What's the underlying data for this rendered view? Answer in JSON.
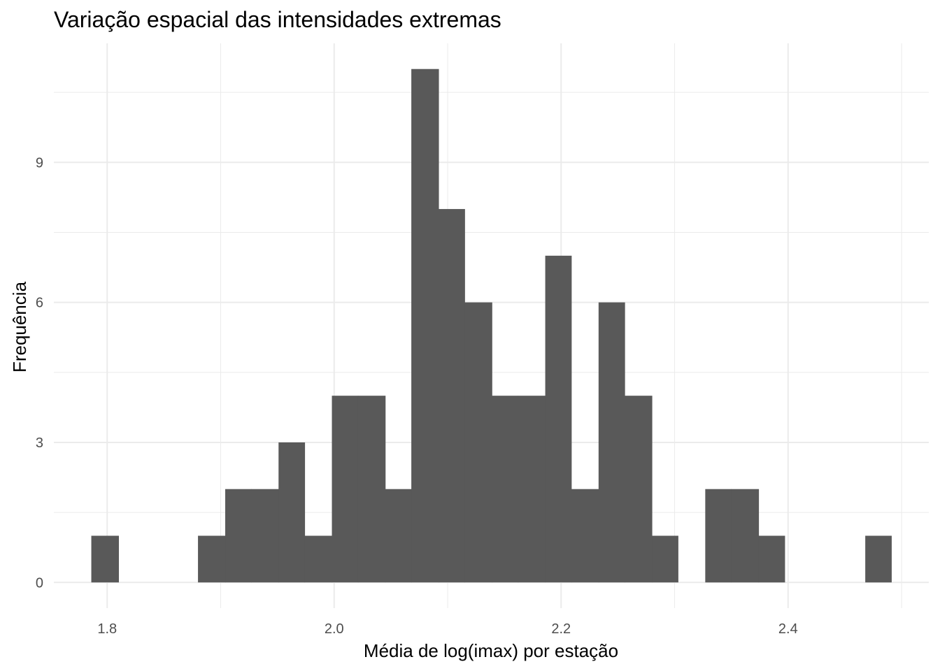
{
  "chart_data": {
    "type": "bar",
    "subtype": "histogram",
    "title": "Variação espacial das intensidades extremas",
    "xlabel": "Média de log(imax) por estação",
    "ylabel": "Frequência",
    "bin_width": 0.0235,
    "bins": [
      {
        "x0": 1.786,
        "x1": 1.81,
        "count": 1
      },
      {
        "x0": 1.81,
        "x1": 1.833,
        "count": 0
      },
      {
        "x0": 1.833,
        "x1": 1.857,
        "count": 0
      },
      {
        "x0": 1.857,
        "x1": 1.88,
        "count": 0
      },
      {
        "x0": 1.88,
        "x1": 1.904,
        "count": 1
      },
      {
        "x0": 1.904,
        "x1": 1.927,
        "count": 2
      },
      {
        "x0": 1.927,
        "x1": 1.951,
        "count": 2
      },
      {
        "x0": 1.951,
        "x1": 1.974,
        "count": 3
      },
      {
        "x0": 1.974,
        "x1": 1.998,
        "count": 1
      },
      {
        "x0": 1.998,
        "x1": 2.021,
        "count": 4
      },
      {
        "x0": 2.021,
        "x1": 2.045,
        "count": 4
      },
      {
        "x0": 2.045,
        "x1": 2.068,
        "count": 2
      },
      {
        "x0": 2.068,
        "x1": 2.092,
        "count": 11
      },
      {
        "x0": 2.092,
        "x1": 2.115,
        "count": 8
      },
      {
        "x0": 2.115,
        "x1": 2.139,
        "count": 6
      },
      {
        "x0": 2.139,
        "x1": 2.162,
        "count": 4
      },
      {
        "x0": 2.162,
        "x1": 2.186,
        "count": 4
      },
      {
        "x0": 2.186,
        "x1": 2.209,
        "count": 7
      },
      {
        "x0": 2.209,
        "x1": 2.233,
        "count": 2
      },
      {
        "x0": 2.233,
        "x1": 2.256,
        "count": 6
      },
      {
        "x0": 2.256,
        "x1": 2.28,
        "count": 4
      },
      {
        "x0": 2.28,
        "x1": 2.303,
        "count": 1
      },
      {
        "x0": 2.303,
        "x1": 2.327,
        "count": 0
      },
      {
        "x0": 2.327,
        "x1": 2.35,
        "count": 2
      },
      {
        "x0": 2.35,
        "x1": 2.374,
        "count": 2
      },
      {
        "x0": 2.374,
        "x1": 2.397,
        "count": 1
      },
      {
        "x0": 2.397,
        "x1": 2.421,
        "count": 0
      },
      {
        "x0": 2.421,
        "x1": 2.444,
        "count": 0
      },
      {
        "x0": 2.444,
        "x1": 2.468,
        "count": 0
      },
      {
        "x0": 2.468,
        "x1": 2.491,
        "count": 1
      }
    ],
    "xlim": [
      1.753,
      2.524
    ],
    "ylim": [
      -0.55,
      11.55
    ],
    "x_ticks": [
      1.8,
      2.0,
      2.2,
      2.4
    ],
    "x_tick_labels": [
      "1.8",
      "2.0",
      "2.2",
      "2.4"
    ],
    "y_ticks": [
      0,
      3,
      6,
      9
    ],
    "y_tick_labels": [
      "0",
      "3",
      "6",
      "9"
    ],
    "grid": true,
    "legend": "none",
    "bar_color": "#595959",
    "grid_color": "#ebebeb"
  }
}
